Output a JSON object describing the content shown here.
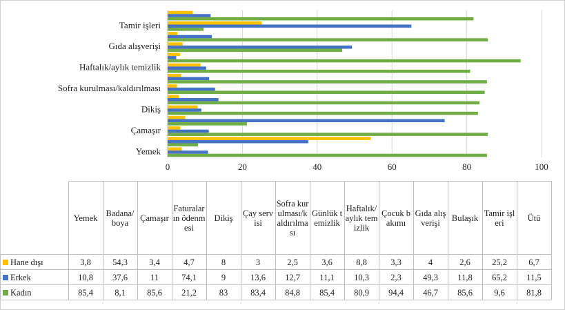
{
  "chart_data": {
    "type": "bar",
    "orientation": "horizontal",
    "categories": [
      "Yemek",
      "Badana/boya",
      "Çamaşır",
      "Faturaların ödenmesi",
      "Dikiş",
      "Çay servisi",
      "Sofra kurulması/kaldırılması",
      "Günlük temizlik",
      "Haftalık/aylık temizlik",
      "Çocuk bakımı",
      "Gıda alışverişi",
      "Bulaşık",
      "Tamir işleri",
      "Ütü"
    ],
    "series": [
      {
        "name": "Hane dışı",
        "color": "#ffc000",
        "values": [
          3.8,
          54.3,
          3.4,
          4.7,
          8,
          3,
          2.5,
          3.6,
          8.8,
          3.3,
          4,
          2.6,
          25.2,
          6.7
        ],
        "value_labels": [
          "3,8",
          "54,3",
          "3,4",
          "4,7",
          "8",
          "3",
          "2,5",
          "3,6",
          "8,8",
          "3,3",
          "4",
          "2,6",
          "25,2",
          "6,7"
        ]
      },
      {
        "name": "Erkek",
        "color": "#4472c4",
        "values": [
          10.8,
          37.6,
          11,
          74.1,
          9,
          13.6,
          12.7,
          11.1,
          10.3,
          2.3,
          49.3,
          11.8,
          65.2,
          11.5
        ],
        "value_labels": [
          "10,8",
          "37,6",
          "11",
          "74,1",
          "9",
          "13,6",
          "12,7",
          "11,1",
          "10,3",
          "2,3",
          "49,3",
          "11,8",
          "65,2",
          "11,5"
        ]
      },
      {
        "name": "Kadın",
        "color": "#70ad47",
        "values": [
          85.4,
          8.1,
          85.6,
          21.2,
          83,
          83.4,
          84.8,
          85.4,
          80.9,
          94.4,
          46.7,
          85.6,
          9.6,
          81.8
        ],
        "value_labels": [
          "85,4",
          "8,1",
          "85,6",
          "21,2",
          "83",
          "83,4",
          "84,8",
          "85,4",
          "80,9",
          "94,4",
          "46,7",
          "85,6",
          "9,6",
          "81,8"
        ]
      }
    ],
    "xlim": [
      0,
      100
    ],
    "xticks": [
      0,
      20,
      40,
      60,
      80,
      100
    ],
    "grid": true
  }
}
